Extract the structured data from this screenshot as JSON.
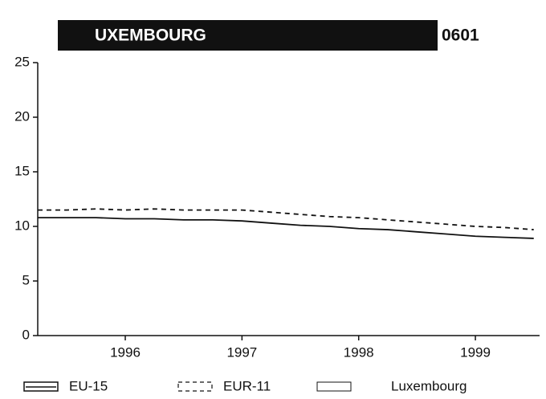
{
  "chart_data": {
    "type": "line",
    "title": "UXEMBOURG",
    "annotation": "0601",
    "x": [
      1995.75,
      1996.0,
      1996.25,
      1996.5,
      1996.75,
      1997.0,
      1997.25,
      1997.5,
      1997.75,
      1998.0,
      1998.25,
      1998.5,
      1998.75,
      1999.0,
      1999.25,
      1999.5,
      1999.75,
      2000.0
    ],
    "series": [
      {
        "name": "EU-15",
        "color": "#111111",
        "dash": false,
        "values": [
          10.8,
          10.8,
          10.8,
          10.7,
          10.7,
          10.6,
          10.6,
          10.5,
          10.3,
          10.1,
          10.0,
          9.8,
          9.7,
          9.5,
          9.3,
          9.1,
          9.0,
          8.9
        ]
      },
      {
        "name": "EUR-11",
        "color": "#111111",
        "dash": true,
        "values": [
          11.5,
          11.5,
          11.6,
          11.5,
          11.6,
          11.5,
          11.5,
          11.5,
          11.3,
          11.1,
          10.9,
          10.8,
          10.6,
          10.4,
          10.2,
          10.0,
          9.9,
          9.7
        ]
      },
      {
        "name": "Luxembourg",
        "color": "#111111",
        "dash": false,
        "values": [
          null,
          null,
          null,
          null,
          null,
          null,
          null,
          null,
          null,
          null,
          null,
          null,
          null,
          null,
          null,
          null,
          null,
          null
        ]
      }
    ],
    "xlim": [
      1995.75,
      2000.05
    ],
    "xticks": [
      {
        "value": 1996.5,
        "label": "1996"
      },
      {
        "value": 1997.5,
        "label": "1997"
      },
      {
        "value": 1998.5,
        "label": "1998"
      },
      {
        "value": 1999.5,
        "label": "1999"
      }
    ],
    "ylim": [
      0,
      25
    ],
    "yticks": [
      0,
      5,
      10,
      15,
      20,
      25
    ],
    "grid": false,
    "legend": "bottom"
  }
}
